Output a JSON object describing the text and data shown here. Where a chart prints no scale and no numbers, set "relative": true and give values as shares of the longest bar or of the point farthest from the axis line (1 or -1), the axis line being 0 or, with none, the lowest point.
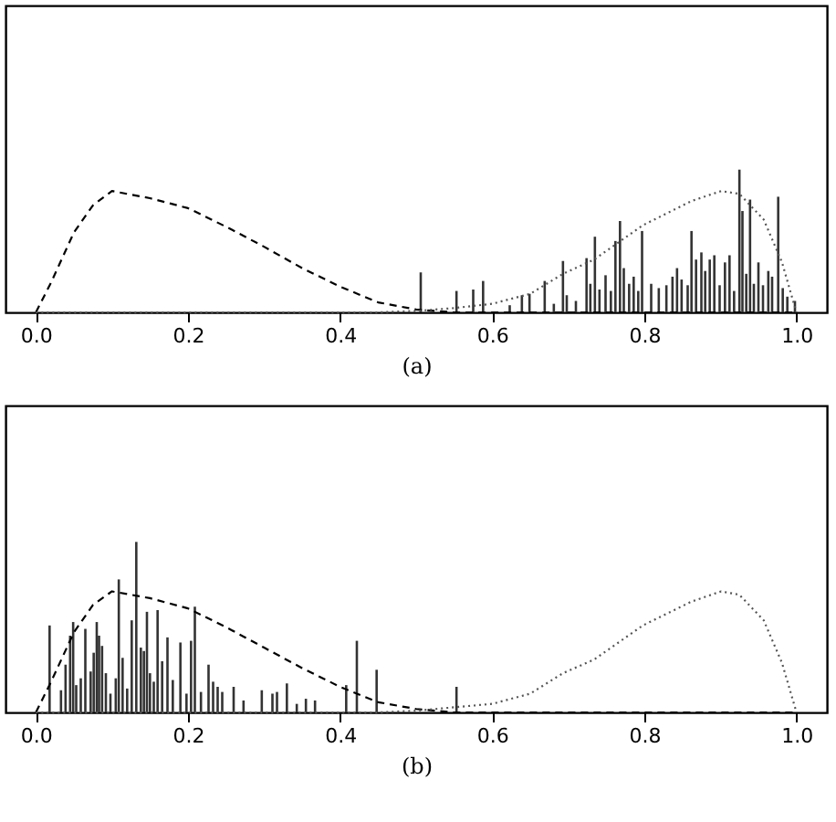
{
  "chart_data": [
    {
      "type": "line",
      "xlabel": "(a)",
      "relative": true,
      "xlim": [
        -0.04,
        1.04
      ],
      "xticks": [
        {
          "value": 0,
          "label": "0.0"
        },
        {
          "value": 0.2,
          "label": "0.2"
        },
        {
          "value": 0.4,
          "label": "0.4"
        },
        {
          "value": 0.6,
          "label": "0.6"
        },
        {
          "value": 0.8,
          "label": "0.8"
        },
        {
          "value": 1,
          "label": "1.0"
        }
      ],
      "tick_labels": "x",
      "legend": false,
      "series": [
        {
          "type": "bar",
          "color": "#333333",
          "x": [
            0.506,
            0.553,
            0.575,
            0.588,
            0.623,
            0.639,
            0.649,
            0.669,
            0.681,
            0.693,
            0.698,
            0.71,
            0.724,
            0.729,
            0.735,
            0.741,
            0.749,
            0.756,
            0.762,
            0.768,
            0.773,
            0.78,
            0.786,
            0.792,
            0.797,
            0.809,
            0.819,
            0.829,
            0.837,
            0.843,
            0.849,
            0.857,
            0.862,
            0.868,
            0.875,
            0.88,
            0.886,
            0.892,
            0.899,
            0.906,
            0.912,
            0.918,
            0.925,
            0.929,
            0.934,
            0.939,
            0.944,
            0.95,
            0.956,
            0.963,
            0.968,
            0.976,
            0.982,
            0.988,
            0.998
          ],
          "values": [
            0.28,
            0.15,
            0.16,
            0.22,
            0.05,
            0.12,
            0.13,
            0.22,
            0.06,
            0.36,
            0.12,
            0.08,
            0.38,
            0.2,
            0.53,
            0.16,
            0.26,
            0.15,
            0.5,
            0.64,
            0.31,
            0.2,
            0.25,
            0.15,
            0.57,
            0.2,
            0.17,
            0.19,
            0.25,
            0.31,
            0.23,
            0.19,
            0.57,
            0.37,
            0.42,
            0.29,
            0.37,
            0.4,
            0.19,
            0.35,
            0.4,
            0.15,
            1.0,
            0.71,
            0.27,
            0.79,
            0.2,
            0.35,
            0.19,
            0.29,
            0.25,
            0.81,
            0.17,
            0.11,
            0.08
          ]
        },
        {
          "color": "#000000",
          "line_style": "dashed",
          "x": [
            0,
            0.02,
            0.05,
            0.075,
            0.1,
            0.15,
            0.2,
            0.25,
            0.3,
            0.35,
            0.4,
            0.45,
            0.5,
            0.55,
            1
          ],
          "values": [
            0,
            0.21,
            0.56,
            0.75,
            0.85,
            0.8,
            0.73,
            0.6,
            0.46,
            0.31,
            0.18,
            0.07,
            0.02,
            0,
            0
          ]
        },
        {
          "color": "#555555",
          "line_style": "dotted",
          "x": [
            0,
            0.45,
            0.5,
            0.55,
            0.6,
            0.65,
            0.693,
            0.734,
            0.798,
            0.862,
            0.901,
            0.925,
            0.957,
            0.981,
            1.0
          ],
          "values": [
            0,
            0,
            0.01,
            0.03,
            0.06,
            0.13,
            0.27,
            0.37,
            0.61,
            0.78,
            0.85,
            0.83,
            0.65,
            0.35,
            0
          ]
        }
      ]
    },
    {
      "type": "line",
      "xlabel": "(b)",
      "relative": true,
      "xlim": [
        -0.04,
        1.04
      ],
      "xticks": [
        {
          "value": 0,
          "label": "0.0"
        },
        {
          "value": 0.2,
          "label": "0.2"
        },
        {
          "value": 0.4,
          "label": "0.4"
        },
        {
          "value": 0.6,
          "label": "0.6"
        },
        {
          "value": 0.8,
          "label": "0.8"
        },
        {
          "value": 1,
          "label": "1.0"
        }
      ],
      "tick_labels": "x",
      "legend": false,
      "series": [
        {
          "type": "bar",
          "color": "#333333",
          "x": [
            0.018,
            0.033,
            0.039,
            0.045,
            0.049,
            0.053,
            0.059,
            0.065,
            0.072,
            0.076,
            0.08,
            0.083,
            0.087,
            0.092,
            0.098,
            0.105,
            0.109,
            0.114,
            0.12,
            0.126,
            0.132,
            0.138,
            0.142,
            0.146,
            0.15,
            0.155,
            0.16,
            0.166,
            0.173,
            0.18,
            0.19,
            0.198,
            0.204,
            0.209,
            0.217,
            0.227,
            0.233,
            0.239,
            0.245,
            0.26,
            0.273,
            0.297,
            0.311,
            0.317,
            0.33,
            0.343,
            0.355,
            0.367,
            0.408,
            0.422,
            0.448,
            0.553
          ],
          "values": [
            0.51,
            0.13,
            0.28,
            0.45,
            0.53,
            0.16,
            0.2,
            0.49,
            0.24,
            0.35,
            0.53,
            0.45,
            0.39,
            0.23,
            0.11,
            0.2,
            0.78,
            0.32,
            0.14,
            0.54,
            1.0,
            0.38,
            0.36,
            0.59,
            0.23,
            0.18,
            0.6,
            0.3,
            0.44,
            0.19,
            0.41,
            0.11,
            0.42,
            0.62,
            0.12,
            0.28,
            0.18,
            0.15,
            0.12,
            0.15,
            0.07,
            0.13,
            0.11,
            0.12,
            0.17,
            0.05,
            0.08,
            0.07,
            0.16,
            0.42,
            0.25,
            0.15
          ]
        },
        {
          "color": "#000000",
          "line_style": "dashed",
          "x": [
            0,
            0.02,
            0.05,
            0.075,
            0.1,
            0.15,
            0.2,
            0.25,
            0.3,
            0.35,
            0.4,
            0.45,
            0.5,
            0.55,
            1
          ],
          "values": [
            0,
            0.18,
            0.47,
            0.63,
            0.71,
            0.67,
            0.61,
            0.5,
            0.38,
            0.26,
            0.15,
            0.06,
            0.02,
            0,
            0
          ]
        },
        {
          "color": "#555555",
          "line_style": "dotted",
          "x": [
            0,
            0.45,
            0.5,
            0.55,
            0.6,
            0.65,
            0.693,
            0.734,
            0.798,
            0.862,
            0.901,
            0.925,
            0.957,
            0.981,
            1.0
          ],
          "values": [
            0,
            0,
            0.01,
            0.03,
            0.05,
            0.11,
            0.23,
            0.31,
            0.51,
            0.65,
            0.71,
            0.69,
            0.54,
            0.29,
            0
          ]
        }
      ]
    }
  ]
}
